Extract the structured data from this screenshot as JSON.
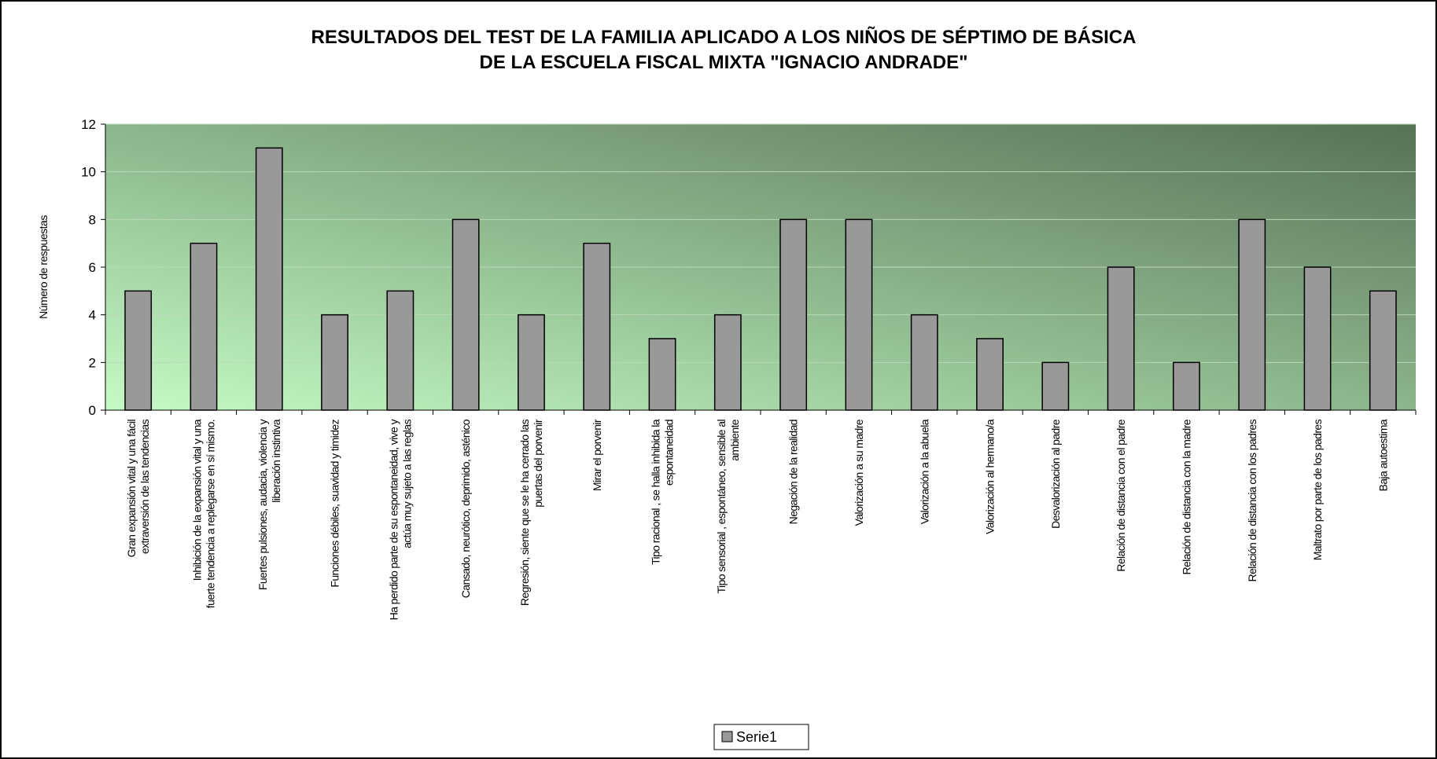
{
  "chart_data": {
    "type": "bar",
    "title": "RESULTADOS DEL TEST DE LA FAMILIA APLICADO A LOS NIÑOS DE SÉPTIMO DE BÁSICA",
    "subtitle": "DE LA ESCUELA FISCAL MIXTA \"IGNACIO ANDRADE\"",
    "y_label": "Número de respuestas",
    "categories": [
      "Gran expansión vital y una fácil extraversión de las tendencias",
      "Inhibición de la expansión vital y una fuerte tendencia a replegarse en sí mismo.",
      "Fuertes pulsiones, audacia, violencia y liberación instintiva",
      "Funciones débiles, suavidad y timidez",
      "Ha perdido parte de su espontaneidad, vive y actúa muy sujeto a las reglas",
      "Cansado, neurótico, deprimido, asténico",
      "Regresión, siente que se le ha cerrado las puertas del porvenir",
      "Mirar el porvenir",
      "Tipo racional , se halla inhibida la espontaneidad",
      "Tipo sensorial , espontáneo, sensible al ambiente",
      "Negación de la realidad",
      "Valorización a su madre",
      "Valorización a la abuela",
      "Valorización al hermano/a",
      "Desvalorización al padre",
      "Relación de distancia con el padre",
      "Relación de distancia con la madre",
      "Relación de distancia con los padres",
      "Maltrato por parte de los padres",
      "Baja autoestima"
    ],
    "series": [
      {
        "name": "Serie1",
        "color": "#999999",
        "values": [
          5,
          7,
          11,
          4,
          5,
          8,
          4,
          7,
          3,
          4,
          8,
          8,
          4,
          3,
          2,
          6,
          2,
          8,
          6,
          5
        ]
      }
    ],
    "ylim": [
      0,
      12
    ],
    "yticks": [
      0,
      2,
      4,
      6,
      8,
      10,
      12
    ],
    "grid": true,
    "legend": "bottom"
  }
}
